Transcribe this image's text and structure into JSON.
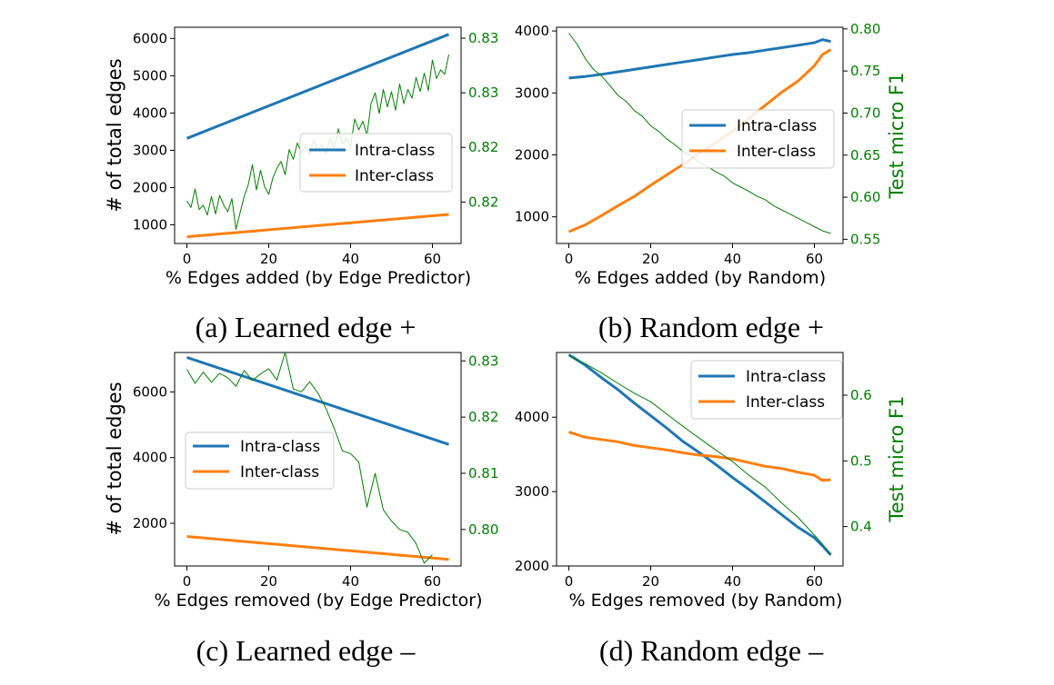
{
  "colors": {
    "intra": "#1f77b4",
    "inter": "#ff7f0e",
    "f1": "#008000",
    "axis": "#000000"
  },
  "chart_data": [
    {
      "type": "line",
      "caption": "(a) Learned edge +",
      "xlabel": "% Edges added (by Edge Predictor)",
      "ylabel": "# of total edges",
      "y2label": "",
      "xlim": [
        -3,
        67
      ],
      "ylim": [
        500,
        6300
      ],
      "y2lim": [
        0.8137,
        0.8335
      ],
      "xticks": [
        0,
        20,
        40,
        60
      ],
      "yticks": [
        1000,
        2000,
        3000,
        4000,
        5000,
        6000
      ],
      "y2ticks": [
        0.8175,
        0.8225,
        0.8275,
        0.8325
      ],
      "y2ticklabels": [
        "0.82",
        "0.82",
        "0.83",
        "0.83"
      ],
      "legend": {
        "placement": "center-right",
        "entries": [
          "Intra-class",
          "Inter-class"
        ]
      },
      "series": [
        {
          "name": "Intra-class",
          "x": [
            0,
            64
          ],
          "values": [
            3320,
            6110
          ]
        },
        {
          "name": "Inter-class",
          "x": [
            0,
            64
          ],
          "values": [
            680,
            1280
          ]
        },
        {
          "name": "",
          "axis": "y2",
          "x": [
            0,
            1,
            2,
            3,
            4,
            5,
            6,
            7,
            8,
            9,
            10,
            11,
            12,
            13,
            14,
            15,
            16,
            17,
            18,
            19,
            20,
            21,
            22,
            23,
            24,
            25,
            26,
            27,
            28,
            29,
            30,
            31,
            32,
            33,
            34,
            35,
            36,
            37,
            38,
            39,
            40,
            41,
            42,
            43,
            44,
            45,
            46,
            47,
            48,
            49,
            50,
            51,
            52,
            53,
            54,
            55,
            56,
            57,
            58,
            59,
            60,
            61,
            62,
            63,
            64
          ],
          "values": [
            0.8176,
            0.817,
            0.8187,
            0.8168,
            0.8172,
            0.8163,
            0.818,
            0.8164,
            0.8181,
            0.8172,
            0.8166,
            0.8178,
            0.815,
            0.8165,
            0.818,
            0.8191,
            0.8209,
            0.8186,
            0.8204,
            0.8189,
            0.8182,
            0.8197,
            0.8206,
            0.8212,
            0.82,
            0.8223,
            0.8214,
            0.8229,
            0.822,
            0.8226,
            0.8218,
            0.8231,
            0.8222,
            0.8227,
            0.8219,
            0.8233,
            0.8224,
            0.8242,
            0.8228,
            0.8234,
            0.8226,
            0.8251,
            0.8241,
            0.8249,
            0.8236,
            0.8265,
            0.8275,
            0.8256,
            0.8278,
            0.8262,
            0.8276,
            0.8259,
            0.8283,
            0.8265,
            0.8278,
            0.827,
            0.8289,
            0.8276,
            0.8293,
            0.8277,
            0.8305,
            0.8288,
            0.8296,
            0.8292,
            0.831
          ]
        }
      ]
    },
    {
      "type": "line",
      "caption": "(b) Random edge +",
      "xlabel": "% Edges added (by Random)",
      "ylabel": "",
      "y2label": "Test micro F1",
      "xlim": [
        -3,
        67
      ],
      "ylim": [
        570,
        4060
      ],
      "y2lim": [
        0.545,
        0.802
      ],
      "xticks": [
        0,
        20,
        40,
        60
      ],
      "yticks": [
        1000,
        2000,
        3000,
        4000
      ],
      "y2ticks": [
        0.55,
        0.6,
        0.65,
        0.7,
        0.75,
        0.8
      ],
      "y2ticklabels": [
        "0.55",
        "0.60",
        "0.65",
        "0.70",
        "0.75",
        "0.80"
      ],
      "legend": {
        "placement": "upper-right",
        "entries": [
          "Intra-class",
          "Inter-class"
        ]
      },
      "series": [
        {
          "name": "Intra-class",
          "x": [
            0,
            4,
            8,
            12,
            16,
            20,
            24,
            28,
            32,
            36,
            40,
            44,
            48,
            52,
            56,
            60,
            62,
            64
          ],
          "values": [
            3240,
            3265,
            3300,
            3340,
            3380,
            3420,
            3460,
            3500,
            3540,
            3580,
            3620,
            3650,
            3690,
            3730,
            3770,
            3810,
            3860,
            3830
          ]
        },
        {
          "name": "Inter-class",
          "x": [
            0,
            4,
            8,
            12,
            16,
            20,
            24,
            28,
            32,
            36,
            40,
            44,
            48,
            52,
            56,
            60,
            62,
            64
          ],
          "values": [
            760,
            870,
            1020,
            1180,
            1330,
            1510,
            1680,
            1850,
            2030,
            2200,
            2380,
            2590,
            2800,
            3010,
            3190,
            3440,
            3620,
            3700
          ]
        },
        {
          "name": "",
          "axis": "y2",
          "x": [
            0,
            2,
            4,
            6,
            8,
            10,
            12,
            14,
            16,
            18,
            20,
            22,
            24,
            26,
            28,
            30,
            32,
            34,
            36,
            38,
            40,
            42,
            44,
            46,
            48,
            50,
            52,
            54,
            56,
            58,
            60,
            62,
            64
          ],
          "values": [
            0.795,
            0.782,
            0.765,
            0.752,
            0.744,
            0.733,
            0.721,
            0.714,
            0.703,
            0.696,
            0.685,
            0.678,
            0.669,
            0.662,
            0.654,
            0.649,
            0.641,
            0.636,
            0.63,
            0.625,
            0.617,
            0.612,
            0.607,
            0.601,
            0.597,
            0.59,
            0.585,
            0.58,
            0.575,
            0.57,
            0.565,
            0.56,
            0.557
          ]
        }
      ]
    },
    {
      "type": "line",
      "caption": "(c) Learned edge –",
      "xlabel": "% Edges removed (by Edge Predictor)",
      "ylabel": "# of total edges",
      "y2label": "",
      "xlim": [
        -3,
        67
      ],
      "ylim": [
        700,
        7200
      ],
      "y2lim": [
        0.7935,
        0.8315
      ],
      "xticks": [
        0,
        20,
        40,
        60
      ],
      "yticks": [
        2000,
        4000,
        6000
      ],
      "y2ticks": [
        0.8,
        0.81,
        0.82,
        0.83
      ],
      "y2ticklabels": [
        "0.80",
        "0.81",
        "0.82",
        "0.83"
      ],
      "legend": {
        "placement": "center-left",
        "entries": [
          "Intra-class",
          "Inter-class"
        ]
      },
      "series": [
        {
          "name": "Intra-class",
          "x": [
            0,
            64
          ],
          "values": [
            7050,
            4400
          ]
        },
        {
          "name": "Inter-class",
          "x": [
            0,
            64
          ],
          "values": [
            1600,
            900
          ]
        },
        {
          "name": "",
          "axis": "y2",
          "x": [
            0,
            2,
            4,
            6,
            8,
            10,
            12,
            14,
            16,
            18,
            20,
            22,
            24,
            26,
            28,
            30,
            32,
            34,
            36,
            38,
            40,
            42,
            44,
            46,
            48,
            50,
            52,
            54,
            56,
            58,
            60
          ],
          "values": [
            0.8285,
            0.826,
            0.828,
            0.8262,
            0.8278,
            0.827,
            0.8255,
            0.8283,
            0.8265,
            0.8277,
            0.8286,
            0.8266,
            0.8315,
            0.825,
            0.8245,
            0.8263,
            0.8243,
            0.8215,
            0.818,
            0.814,
            0.8135,
            0.812,
            0.804,
            0.81,
            0.8035,
            0.8015,
            0.8,
            0.7995,
            0.7975,
            0.794,
            0.7955
          ]
        }
      ]
    },
    {
      "type": "line",
      "caption": "(d) Random edge –",
      "xlabel": "% Edges removed (by Random)",
      "ylabel": "",
      "y2label": "Test micro F1",
      "xlim": [
        -3,
        67
      ],
      "ylim": [
        2000,
        4870
      ],
      "y2lim": [
        0.34,
        0.665
      ],
      "xticks": [
        0,
        20,
        40,
        60
      ],
      "yticks": [
        2000,
        3000,
        4000
      ],
      "y2ticks": [
        0.4,
        0.5,
        0.6
      ],
      "y2ticklabels": [
        "0.4",
        "0.5",
        "0.6"
      ],
      "legend": {
        "placement": "upper-right",
        "entries": [
          "Intra-class",
          "Inter-class"
        ]
      },
      "series": [
        {
          "name": "Intra-class",
          "x": [
            0,
            4,
            8,
            12,
            16,
            20,
            24,
            28,
            32,
            36,
            40,
            44,
            48,
            52,
            56,
            60,
            62,
            64
          ],
          "values": [
            4840,
            4700,
            4530,
            4370,
            4190,
            4020,
            3850,
            3670,
            3520,
            3360,
            3190,
            3030,
            2860,
            2690,
            2520,
            2380,
            2270,
            2150
          ]
        },
        {
          "name": "Inter-class",
          "x": [
            0,
            4,
            8,
            12,
            16,
            20,
            24,
            28,
            32,
            36,
            40,
            44,
            48,
            52,
            56,
            60,
            62,
            64
          ],
          "values": [
            3800,
            3730,
            3700,
            3670,
            3620,
            3590,
            3560,
            3520,
            3490,
            3470,
            3440,
            3390,
            3340,
            3310,
            3260,
            3220,
            3150,
            3160
          ]
        },
        {
          "name": "",
          "axis": "y2",
          "x": [
            0,
            4,
            8,
            12,
            16,
            20,
            24,
            28,
            32,
            36,
            40,
            44,
            48,
            52,
            56,
            60,
            62,
            64
          ],
          "values": [
            0.66,
            0.648,
            0.634,
            0.618,
            0.603,
            0.59,
            0.571,
            0.552,
            0.534,
            0.516,
            0.499,
            0.478,
            0.46,
            0.436,
            0.414,
            0.387,
            0.373,
            0.356
          ]
        }
      ]
    }
  ]
}
